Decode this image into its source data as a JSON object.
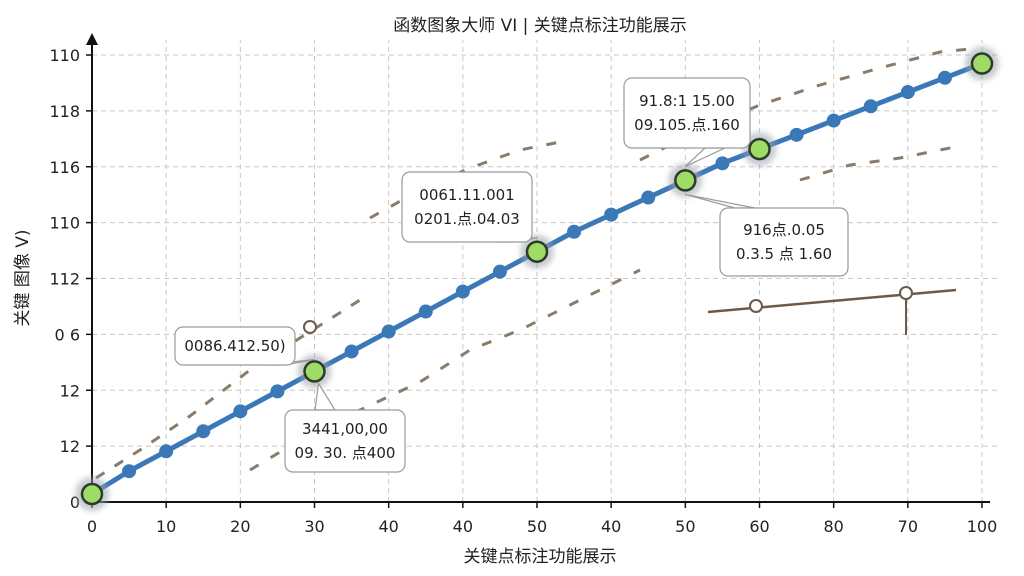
{
  "chart_data": {
    "type": "line",
    "title": "函数图象大师 VI | 关键点标注功能展示",
    "xlabel": "关键点标注功能展示",
    "ylabel": "关键 图像 V)",
    "x_tick_labels": [
      "0",
      "10",
      "20",
      "30",
      "40",
      "40",
      "50",
      "40",
      "50",
      "60",
      "80",
      "70",
      "100"
    ],
    "y_tick_labels": [
      "0",
      "12",
      "12",
      "0 6",
      "112",
      "110",
      "116",
      "118",
      "110"
    ],
    "grid": true,
    "legend": "none",
    "colors": {
      "main_line": "#3a78b8",
      "marker_fill": "#3a78b8",
      "key_marker_fill": "#9fdc66",
      "dashed_line": "#8a7b6a",
      "grid": "#c8c8c8"
    },
    "series": [
      {
        "values_x": [
          0,
          5,
          10,
          15,
          20,
          25,
          30,
          35,
          40,
          45,
          50,
          55,
          60,
          65,
          70,
          75,
          80,
          85,
          90,
          95,
          100,
          105,
          110,
          115,
          120
        ],
        "values_y": [
          0,
          0.4,
          0.75,
          1.1,
          1.45,
          1.8,
          2.15,
          2.5,
          2.85,
          3.2,
          3.55,
          3.9,
          4.25,
          4.6,
          4.9,
          5.2,
          5.5,
          5.8,
          6.05,
          6.3,
          6.55,
          6.8,
          7.05,
          7.3,
          7.55
        ]
      }
    ],
    "key_points": [
      {
        "x": 0,
        "y": 0
      },
      {
        "x": 30,
        "y": 2.15
      },
      {
        "x": 60,
        "y": 4.25
      },
      {
        "x": 80,
        "y": 5.5
      },
      {
        "x": 90,
        "y": 6.05
      },
      {
        "x": 120,
        "y": 7.55
      }
    ],
    "annotations": [
      {
        "lines": [
          "0086.412.50)"
        ]
      },
      {
        "lines": [
          "3441,00,00",
          "09. 30. 点400"
        ]
      },
      {
        "lines": [
          "0061.11.001",
          "0201.点.04.03"
        ]
      },
      {
        "lines": [
          "91.8:1 15.00",
          "09.105.点.160"
        ]
      },
      {
        "lines": [
          "916点.0.05",
          "0.3.5 点 1.60"
        ]
      }
    ]
  }
}
